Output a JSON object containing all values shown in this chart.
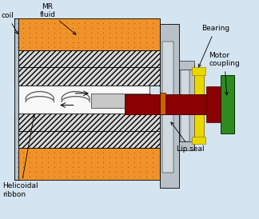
{
  "fig_width": 3.24,
  "fig_height": 2.74,
  "dpi": 100,
  "bg_color": "#d4e4f0",
  "orange_color": "#f0922a",
  "dark_red_color": "#8b0000",
  "green_color": "#2e8b20",
  "yellow_color": "#e8d800",
  "labels": {
    "coil": "coil",
    "MR_fluid": "MR\nfluid",
    "Helicoidal": "Helicoidal\nribbon",
    "Bearing": "Bearing",
    "Motor_coupling": "Motor\ncoupling",
    "Lip_seal": "Lip seal"
  },
  "fontsize": 6.5
}
